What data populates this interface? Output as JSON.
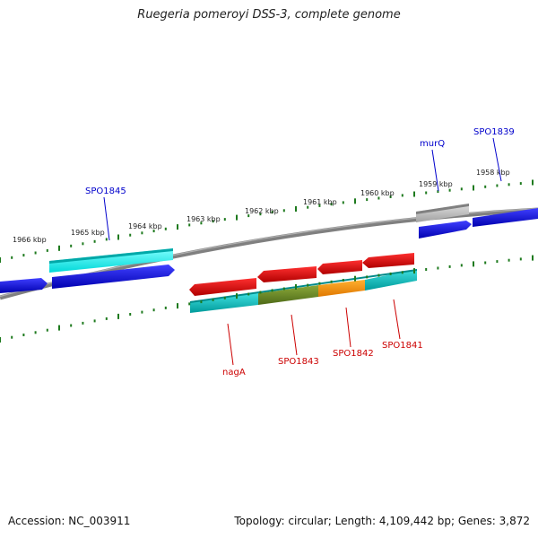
{
  "title": "Ruegeria pomeroyi DSS-3, complete genome",
  "footer": {
    "accession": "Accession: NC_003911",
    "summary": "Topology: circular; Length: 4,109,442 bp; Genes: 3,872"
  },
  "ticks": [
    "1958 kbp",
    "1959 kbp",
    "1960 kbp",
    "1961 kbp",
    "1962 kbp",
    "1963 kbp",
    "1964 kbp",
    "1965 kbp",
    "1966 kbp"
  ],
  "forward_genes": [
    "SPO1839",
    "murQ",
    "SPO1845"
  ],
  "reverse_genes": [
    "SPO1841",
    "SPO1842",
    "SPO1843",
    "nagA"
  ],
  "colors": {
    "backbone": "#808080",
    "forward_gene": "#0000e6",
    "reverse_gene": "#e60000",
    "tick": "#1e7a1e",
    "forward_label": "#0000cc",
    "reverse_label": "#cc0000",
    "cds_cyan": "#00c8c8",
    "cds_bright_cyan": "#00ffff",
    "cds_olive": "#6b8e23",
    "cds_orange": "#ff9900",
    "cds_grey": "#bfbfbf"
  }
}
